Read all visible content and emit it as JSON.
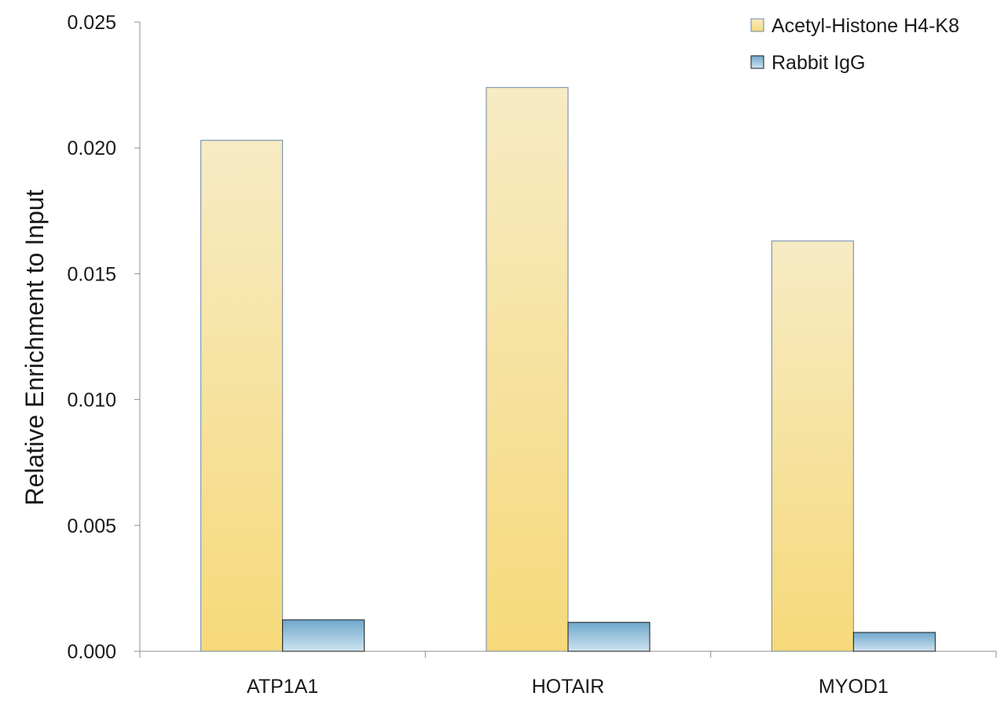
{
  "chart_data": {
    "type": "bar",
    "title": "",
    "xlabel": "",
    "ylabel": "Relative Enrichment to Input",
    "categories": [
      "ATP1A1",
      "HOTAIR",
      "MYOD1"
    ],
    "series": [
      {
        "name": "Acetyl-Histone H4-K8",
        "values": [
          0.0203,
          0.0224,
          0.0163
        ],
        "color_top": "#f7ebc4",
        "color_bottom": "#f6d97a",
        "stroke": "#6a87a8"
      },
      {
        "name": "Rabbit IgG",
        "values": [
          0.00125,
          0.00115,
          0.00075
        ],
        "color_top": "#6fa8cc",
        "color_bottom": "#cfe3f0",
        "stroke": "#1a1a1a"
      }
    ],
    "ylim": [
      0,
      0.025
    ],
    "yticks": [
      "0.000",
      "0.005",
      "0.010",
      "0.015",
      "0.020",
      "0.025"
    ],
    "grid": false,
    "legend_position": "top-right"
  }
}
